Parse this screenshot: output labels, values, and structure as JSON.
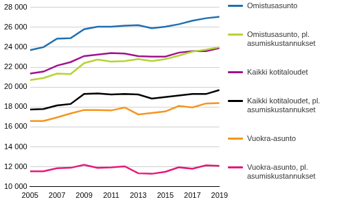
{
  "chart_data": {
    "type": "line",
    "x": [
      2005,
      2006,
      2007,
      2008,
      2009,
      2010,
      2011,
      2012,
      2013,
      2014,
      2015,
      2016,
      2017,
      2018,
      2019
    ],
    "xlim": [
      2005,
      2019
    ],
    "xticks": [
      2005,
      2007,
      2009,
      2011,
      2013,
      2015,
      2017,
      2019
    ],
    "ylim": [
      10000,
      28000
    ],
    "yticks": [
      {
        "value": 10000,
        "label": "10 000"
      },
      {
        "value": 12000,
        "label": "12 000"
      },
      {
        "value": 14000,
        "label": "14 000"
      },
      {
        "value": 16000,
        "label": "16 000"
      },
      {
        "value": 18000,
        "label": "18 000"
      },
      {
        "value": 20000,
        "label": "20 000"
      },
      {
        "value": 22000,
        "label": "22 000"
      },
      {
        "value": 24000,
        "label": "24 000"
      },
      {
        "value": 26000,
        "label": "26 000"
      },
      {
        "value": 28000,
        "label": "28 000"
      }
    ],
    "grid": true,
    "legend": "right",
    "series": [
      {
        "name": "Omistusasunto",
        "color": "#1f6fb2",
        "values": [
          23700,
          24000,
          24850,
          24900,
          25800,
          26050,
          26050,
          26150,
          26200,
          25900,
          26050,
          26300,
          26650,
          26900,
          27050
        ]
      },
      {
        "name": "Omistusasunto, pl. asumiskustannukset",
        "color": "#b5d334",
        "values": [
          20700,
          20900,
          21350,
          21300,
          22400,
          22750,
          22550,
          22600,
          22800,
          22600,
          22800,
          23150,
          23550,
          23750,
          24000
        ]
      },
      {
        "name": "Kaikki kotitaloudet",
        "color": "#a0138e",
        "values": [
          21350,
          21550,
          22150,
          22500,
          23100,
          23250,
          23400,
          23350,
          23100,
          23050,
          23050,
          23450,
          23600,
          23600,
          23900
        ]
      },
      {
        "name": "Kaikki kotitaloudet, pl. asumiskustannukset",
        "color": "#000000",
        "values": [
          17750,
          17800,
          18150,
          18300,
          19300,
          19350,
          19250,
          19300,
          19250,
          18850,
          19000,
          19150,
          19300,
          19300,
          19700
        ]
      },
      {
        "name": "Vuokra-asunto",
        "color": "#f7941d",
        "values": [
          16600,
          16600,
          16950,
          17350,
          17700,
          17700,
          17650,
          17950,
          17250,
          17400,
          17550,
          18100,
          17950,
          18350,
          18400
        ]
      },
      {
        "name": "Vuokra-asunto, pl. asumiskustannukset",
        "color": "#e5197a",
        "values": [
          11550,
          11550,
          11850,
          11900,
          12200,
          11900,
          11950,
          12050,
          11350,
          11300,
          11500,
          11950,
          11800,
          12150,
          12100
        ]
      }
    ]
  }
}
